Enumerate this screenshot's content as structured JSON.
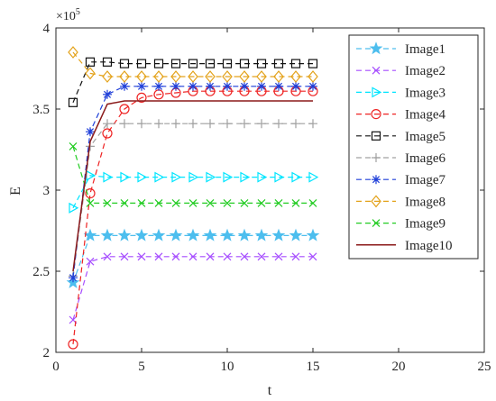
{
  "chart_data": {
    "type": "line",
    "title": "",
    "xlabel": "t",
    "ylabel": "E",
    "exponent_label": "×10",
    "exponent_power": "5",
    "xlim": [
      0,
      25
    ],
    "ylim": [
      2,
      4
    ],
    "xticks": [
      0,
      5,
      10,
      15,
      20,
      25
    ],
    "yticks": [
      2,
      2.5,
      3,
      3.5,
      4
    ],
    "xtick_labels": [
      "0",
      "5",
      "10",
      "15",
      "20",
      "25"
    ],
    "ytick_labels": [
      "2",
      "2.5",
      "3",
      "3.5",
      "4"
    ],
    "y_unit_scale": 100000,
    "grid": false,
    "legend_position": "top-right",
    "x": [
      1,
      2,
      3,
      4,
      5,
      6,
      7,
      8,
      9,
      10,
      11,
      12,
      13,
      14,
      15
    ],
    "series": [
      {
        "name": "Image1",
        "color": "#4DBEEE",
        "marker": "star",
        "dash": "dashed",
        "values": [
          2.43,
          2.72,
          2.72,
          2.72,
          2.72,
          2.72,
          2.72,
          2.72,
          2.72,
          2.72,
          2.72,
          2.72,
          2.72,
          2.72,
          2.72
        ]
      },
      {
        "name": "Image2",
        "color": "#A64DFF",
        "marker": "x",
        "dash": "dashed",
        "values": [
          2.2,
          2.56,
          2.59,
          2.59,
          2.59,
          2.59,
          2.59,
          2.59,
          2.59,
          2.59,
          2.59,
          2.59,
          2.59,
          2.59,
          2.59
        ]
      },
      {
        "name": "Image3",
        "color": "#00E5FF",
        "marker": "triangle-right",
        "dash": "dashed",
        "values": [
          2.89,
          3.09,
          3.08,
          3.08,
          3.08,
          3.08,
          3.08,
          3.08,
          3.08,
          3.08,
          3.08,
          3.08,
          3.08,
          3.08,
          3.08
        ]
      },
      {
        "name": "Image4",
        "color": "#EE2222",
        "marker": "circle",
        "dash": "dashed",
        "values": [
          2.05,
          2.98,
          3.35,
          3.5,
          3.57,
          3.59,
          3.6,
          3.61,
          3.61,
          3.61,
          3.61,
          3.61,
          3.61,
          3.61,
          3.61
        ]
      },
      {
        "name": "Image5",
        "color": "#111111",
        "marker": "square",
        "dash": "dashed",
        "values": [
          3.54,
          3.79,
          3.79,
          3.78,
          3.78,
          3.78,
          3.78,
          3.78,
          3.78,
          3.78,
          3.78,
          3.78,
          3.78,
          3.78,
          3.78
        ]
      },
      {
        "name": "Image6",
        "color": "#A0A0A0",
        "marker": "plus",
        "dash": "dashed",
        "values": [
          2.47,
          3.27,
          3.41,
          3.41,
          3.41,
          3.41,
          3.41,
          3.41,
          3.41,
          3.41,
          3.41,
          3.41,
          3.41,
          3.41,
          3.41
        ]
      },
      {
        "name": "Image7",
        "color": "#1F3FD9",
        "marker": "asterisk",
        "dash": "dashed",
        "values": [
          2.46,
          3.36,
          3.59,
          3.64,
          3.64,
          3.64,
          3.64,
          3.64,
          3.64,
          3.64,
          3.64,
          3.64,
          3.64,
          3.64,
          3.64
        ]
      },
      {
        "name": "Image8",
        "color": "#E3A21A",
        "marker": "diamond",
        "dash": "dashed",
        "values": [
          3.85,
          3.72,
          3.7,
          3.7,
          3.7,
          3.7,
          3.7,
          3.7,
          3.7,
          3.7,
          3.7,
          3.7,
          3.7,
          3.7,
          3.7
        ]
      },
      {
        "name": "Image9",
        "color": "#22CC22",
        "marker": "x",
        "dash": "dashed",
        "values": [
          3.27,
          2.92,
          2.92,
          2.92,
          2.92,
          2.92,
          2.92,
          2.92,
          2.92,
          2.92,
          2.92,
          2.92,
          2.92,
          2.92,
          2.92
        ]
      },
      {
        "name": "Image10",
        "color": "#8B1A1A",
        "marker": "none",
        "dash": "solid",
        "values": [
          2.5,
          3.3,
          3.53,
          3.55,
          3.55,
          3.55,
          3.55,
          3.55,
          3.55,
          3.55,
          3.55,
          3.55,
          3.55,
          3.55,
          3.55
        ]
      }
    ]
  }
}
